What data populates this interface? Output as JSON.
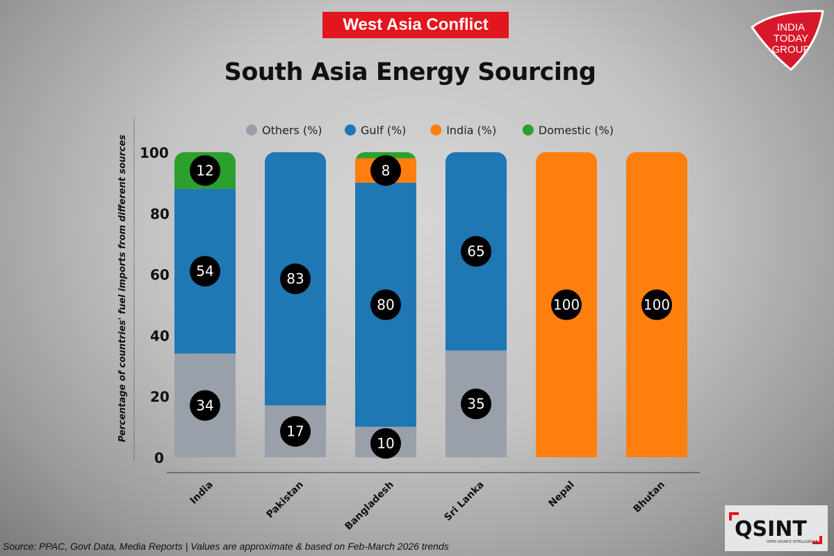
{
  "banner": "West Asia Conflict",
  "title": "South Asia Energy Sourcing",
  "logo": {
    "text": [
      "INDIA",
      "TODAY",
      "GROUP"
    ],
    "color": "#d7182a"
  },
  "osint_logo": {
    "text": "QSINT",
    "subtext": "OPEN SOURCE INTELLIGENCE"
  },
  "source": "Source: PPAC, Govt Data, Media Reports |  Values are approximate & based on Feb-March 2026 trends",
  "chart_data": {
    "type": "bar",
    "stacked": true,
    "title": "South Asia Energy Sourcing",
    "xlabel": "",
    "ylabel": "Percentage of countries' fuel imports from different sources",
    "ylim": [
      0,
      100
    ],
    "yticks": [
      0,
      20,
      40,
      60,
      80,
      100
    ],
    "grid": false,
    "legend_position": "top",
    "categories": [
      "India",
      "Pakistan",
      "Bangladesh",
      "Sri Lanka",
      "Nepal",
      "Bhutan"
    ],
    "series": [
      {
        "name": "Others (%)",
        "color": "#9aa0aa",
        "values": [
          34,
          17,
          10,
          35,
          0,
          0
        ]
      },
      {
        "name": "Gulf (%)",
        "color": "#1f77b4",
        "values": [
          54,
          83,
          80,
          65,
          0,
          0
        ]
      },
      {
        "name": "India (%)",
        "color": "#ff7f0e",
        "values": [
          0,
          0,
          8,
          0,
          100,
          100
        ]
      },
      {
        "name": "Domestic (%)",
        "color": "#2ca02c",
        "values": [
          12,
          0,
          2,
          0,
          0,
          0
        ]
      }
    ],
    "data_labels": [
      [
        "34",
        "54",
        null,
        "12"
      ],
      [
        "17",
        "83",
        null,
        null
      ],
      [
        "10",
        "80",
        "8",
        null
      ],
      [
        "35",
        "65",
        null,
        null
      ],
      [
        null,
        null,
        "100",
        null
      ],
      [
        null,
        null,
        "100",
        null
      ]
    ]
  }
}
